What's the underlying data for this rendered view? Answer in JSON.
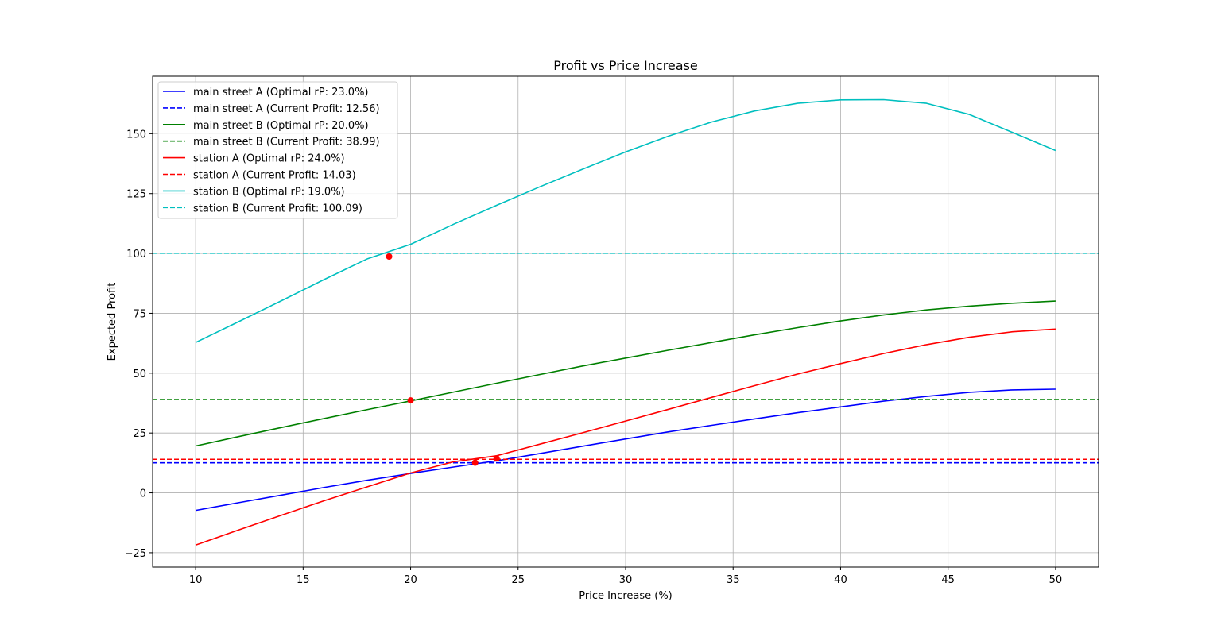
{
  "chart_data": {
    "type": "line",
    "title": "Profit vs Price Increase",
    "xlabel": "Price Increase (%)",
    "ylabel": "Expected Profit",
    "xlim": [
      8,
      52
    ],
    "ylim": [
      -31,
      174
    ],
    "xticks": [
      10,
      15,
      20,
      25,
      30,
      35,
      40,
      45,
      50
    ],
    "yticks": [
      -25,
      0,
      25,
      50,
      75,
      100,
      125,
      150
    ],
    "grid": true,
    "legend_position": "upper-left",
    "x": [
      10,
      12,
      14,
      16,
      18,
      20,
      22,
      24,
      26,
      28,
      30,
      32,
      34,
      36,
      38,
      40,
      42,
      44,
      46,
      48,
      50
    ],
    "series": [
      {
        "name": "main street A (Optimal rP: 23.0%)",
        "color": "#0000ff",
        "style": "solid",
        "values": [
          -7.3,
          -4.1,
          -0.9,
          2.3,
          5.3,
          8.1,
          10.8,
          13.4,
          16.4,
          19.5,
          22.5,
          25.5,
          28.2,
          30.9,
          33.5,
          35.9,
          38.3,
          40.3,
          42.0,
          43.0,
          43.3
        ]
      },
      {
        "name": "main street A (Current Profit: 12.56)",
        "color": "#0000ff",
        "style": "dashed",
        "constant": 12.56
      },
      {
        "name": "main street B (Optimal rP: 20.0%)",
        "color": "#008000",
        "style": "solid",
        "values": [
          19.6,
          23.5,
          27.3,
          31.1,
          34.8,
          38.4,
          42.1,
          45.8,
          49.4,
          53.0,
          56.3,
          59.6,
          62.8,
          66.0,
          69.0,
          71.8,
          74.3,
          76.4,
          78.0,
          79.2,
          80.1
        ]
      },
      {
        "name": "main street B (Current Profit: 38.99)",
        "color": "#008000",
        "style": "dashed",
        "constant": 38.99
      },
      {
        "name": "station A (Optimal rP: 24.0%)",
        "color": "#ff0000",
        "style": "solid",
        "values": [
          -21.8,
          -15.5,
          -9.3,
          -3.2,
          2.6,
          8.3,
          13.0,
          15.5,
          20.3,
          25.1,
          30.0,
          34.9,
          39.9,
          44.8,
          49.6,
          54.0,
          58.2,
          61.9,
          65.0,
          67.3,
          68.4
        ]
      },
      {
        "name": "station A (Current Profit: 14.03)",
        "color": "#ff0000",
        "style": "dashed",
        "constant": 14.03
      },
      {
        "name": "station B (Optimal rP: 19.0%)",
        "color": "#00bfbf",
        "style": "solid",
        "values": [
          62.8,
          71.5,
          80.3,
          89.2,
          97.8,
          103.8,
          112.2,
          120.1,
          127.8,
          135.2,
          142.4,
          149.0,
          154.9,
          159.5,
          162.7,
          164.1,
          164.2,
          162.7,
          158.0,
          150.5,
          143.0
        ]
      },
      {
        "name": "station B (Current Profit: 100.09)",
        "color": "#00bfbf",
        "style": "dashed",
        "constant": 100.09
      }
    ],
    "markers": [
      {
        "x": 23,
        "y": 12.6,
        "color": "#ff0000"
      },
      {
        "x": 20,
        "y": 38.6,
        "color": "#ff0000"
      },
      {
        "x": 24,
        "y": 14.4,
        "color": "#ff0000"
      },
      {
        "x": 19,
        "y": 98.7,
        "color": "#ff0000"
      }
    ]
  }
}
